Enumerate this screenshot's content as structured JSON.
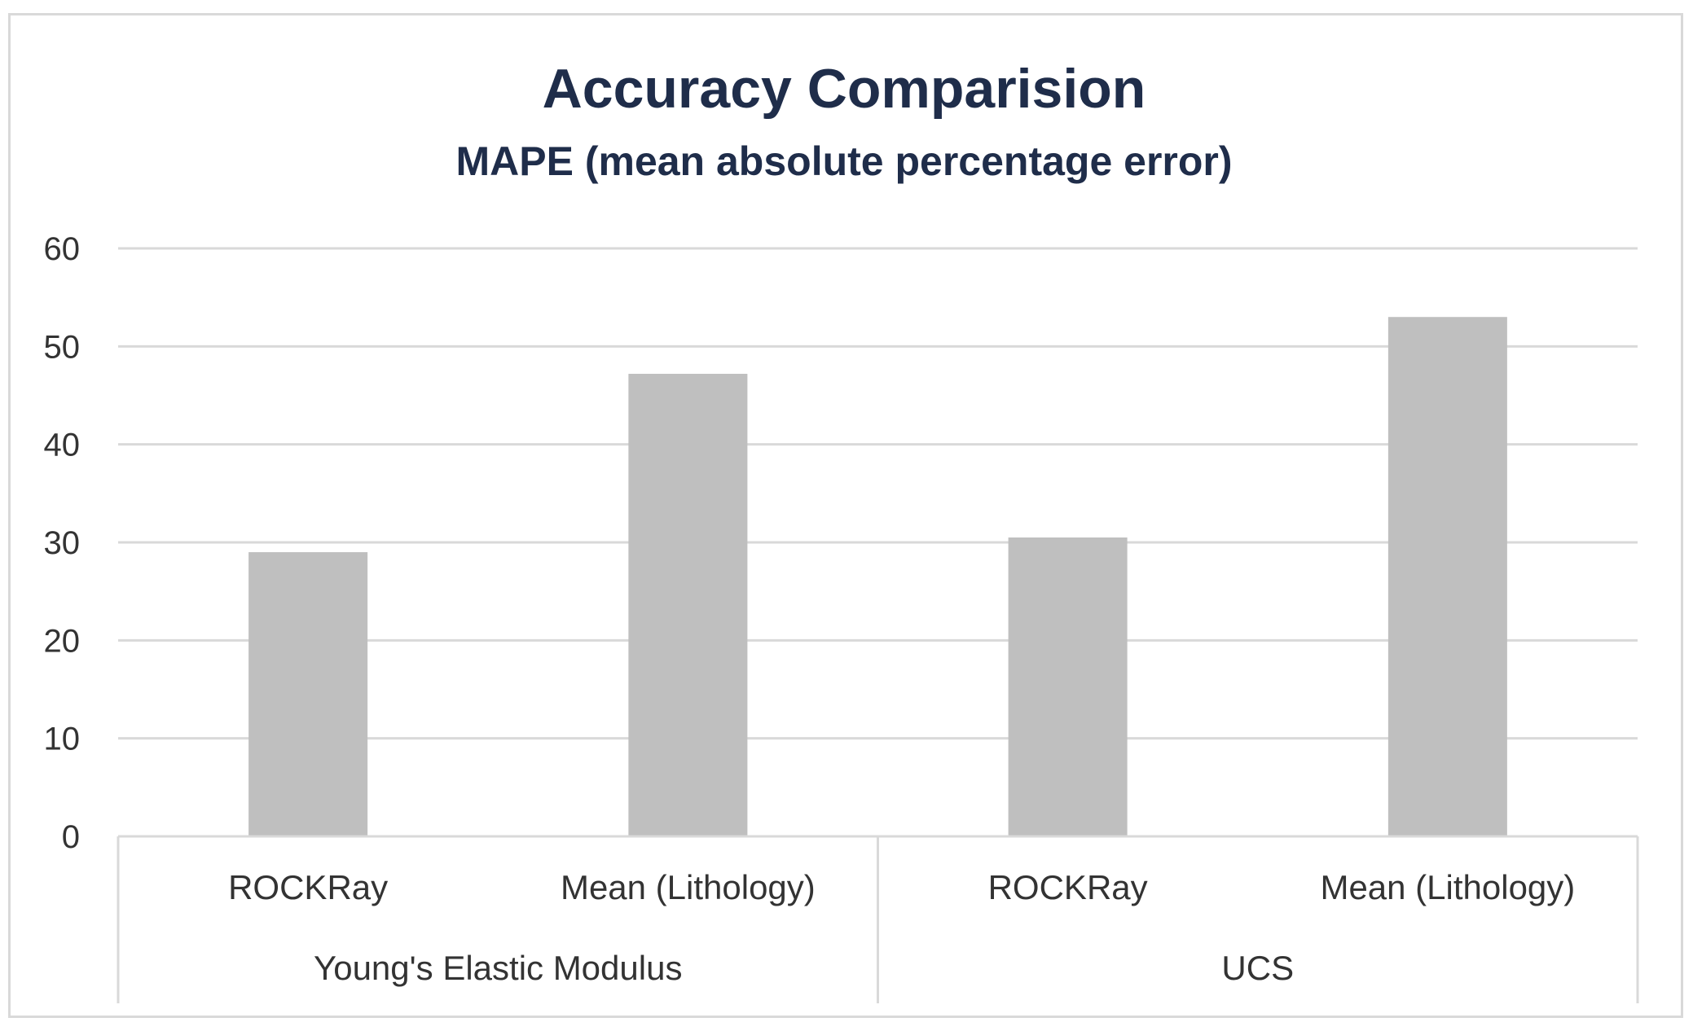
{
  "chart_data": {
    "type": "bar",
    "title": "Accuracy Comparision",
    "subtitle": "MAPE (mean absolute percentage error)",
    "groups": [
      {
        "name": "Young's Elastic Modulus",
        "categories": [
          "ROCKRay",
          "Mean (Lithology)"
        ],
        "values": [
          29,
          47.2
        ]
      },
      {
        "name": "UCS",
        "categories": [
          "ROCKRay",
          "Mean (Lithology)"
        ],
        "values": [
          30.5,
          53
        ]
      }
    ],
    "ylim": [
      0,
      60
    ],
    "yticks": [
      0,
      10,
      20,
      30,
      40,
      50,
      60
    ],
    "grid": true,
    "legend": "none",
    "colors": {
      "bar": "#bfbfbf",
      "grid": "#d9d9d9",
      "axis": "#d9d9d9",
      "title": "#1f2d4a",
      "text": "#333333"
    }
  }
}
